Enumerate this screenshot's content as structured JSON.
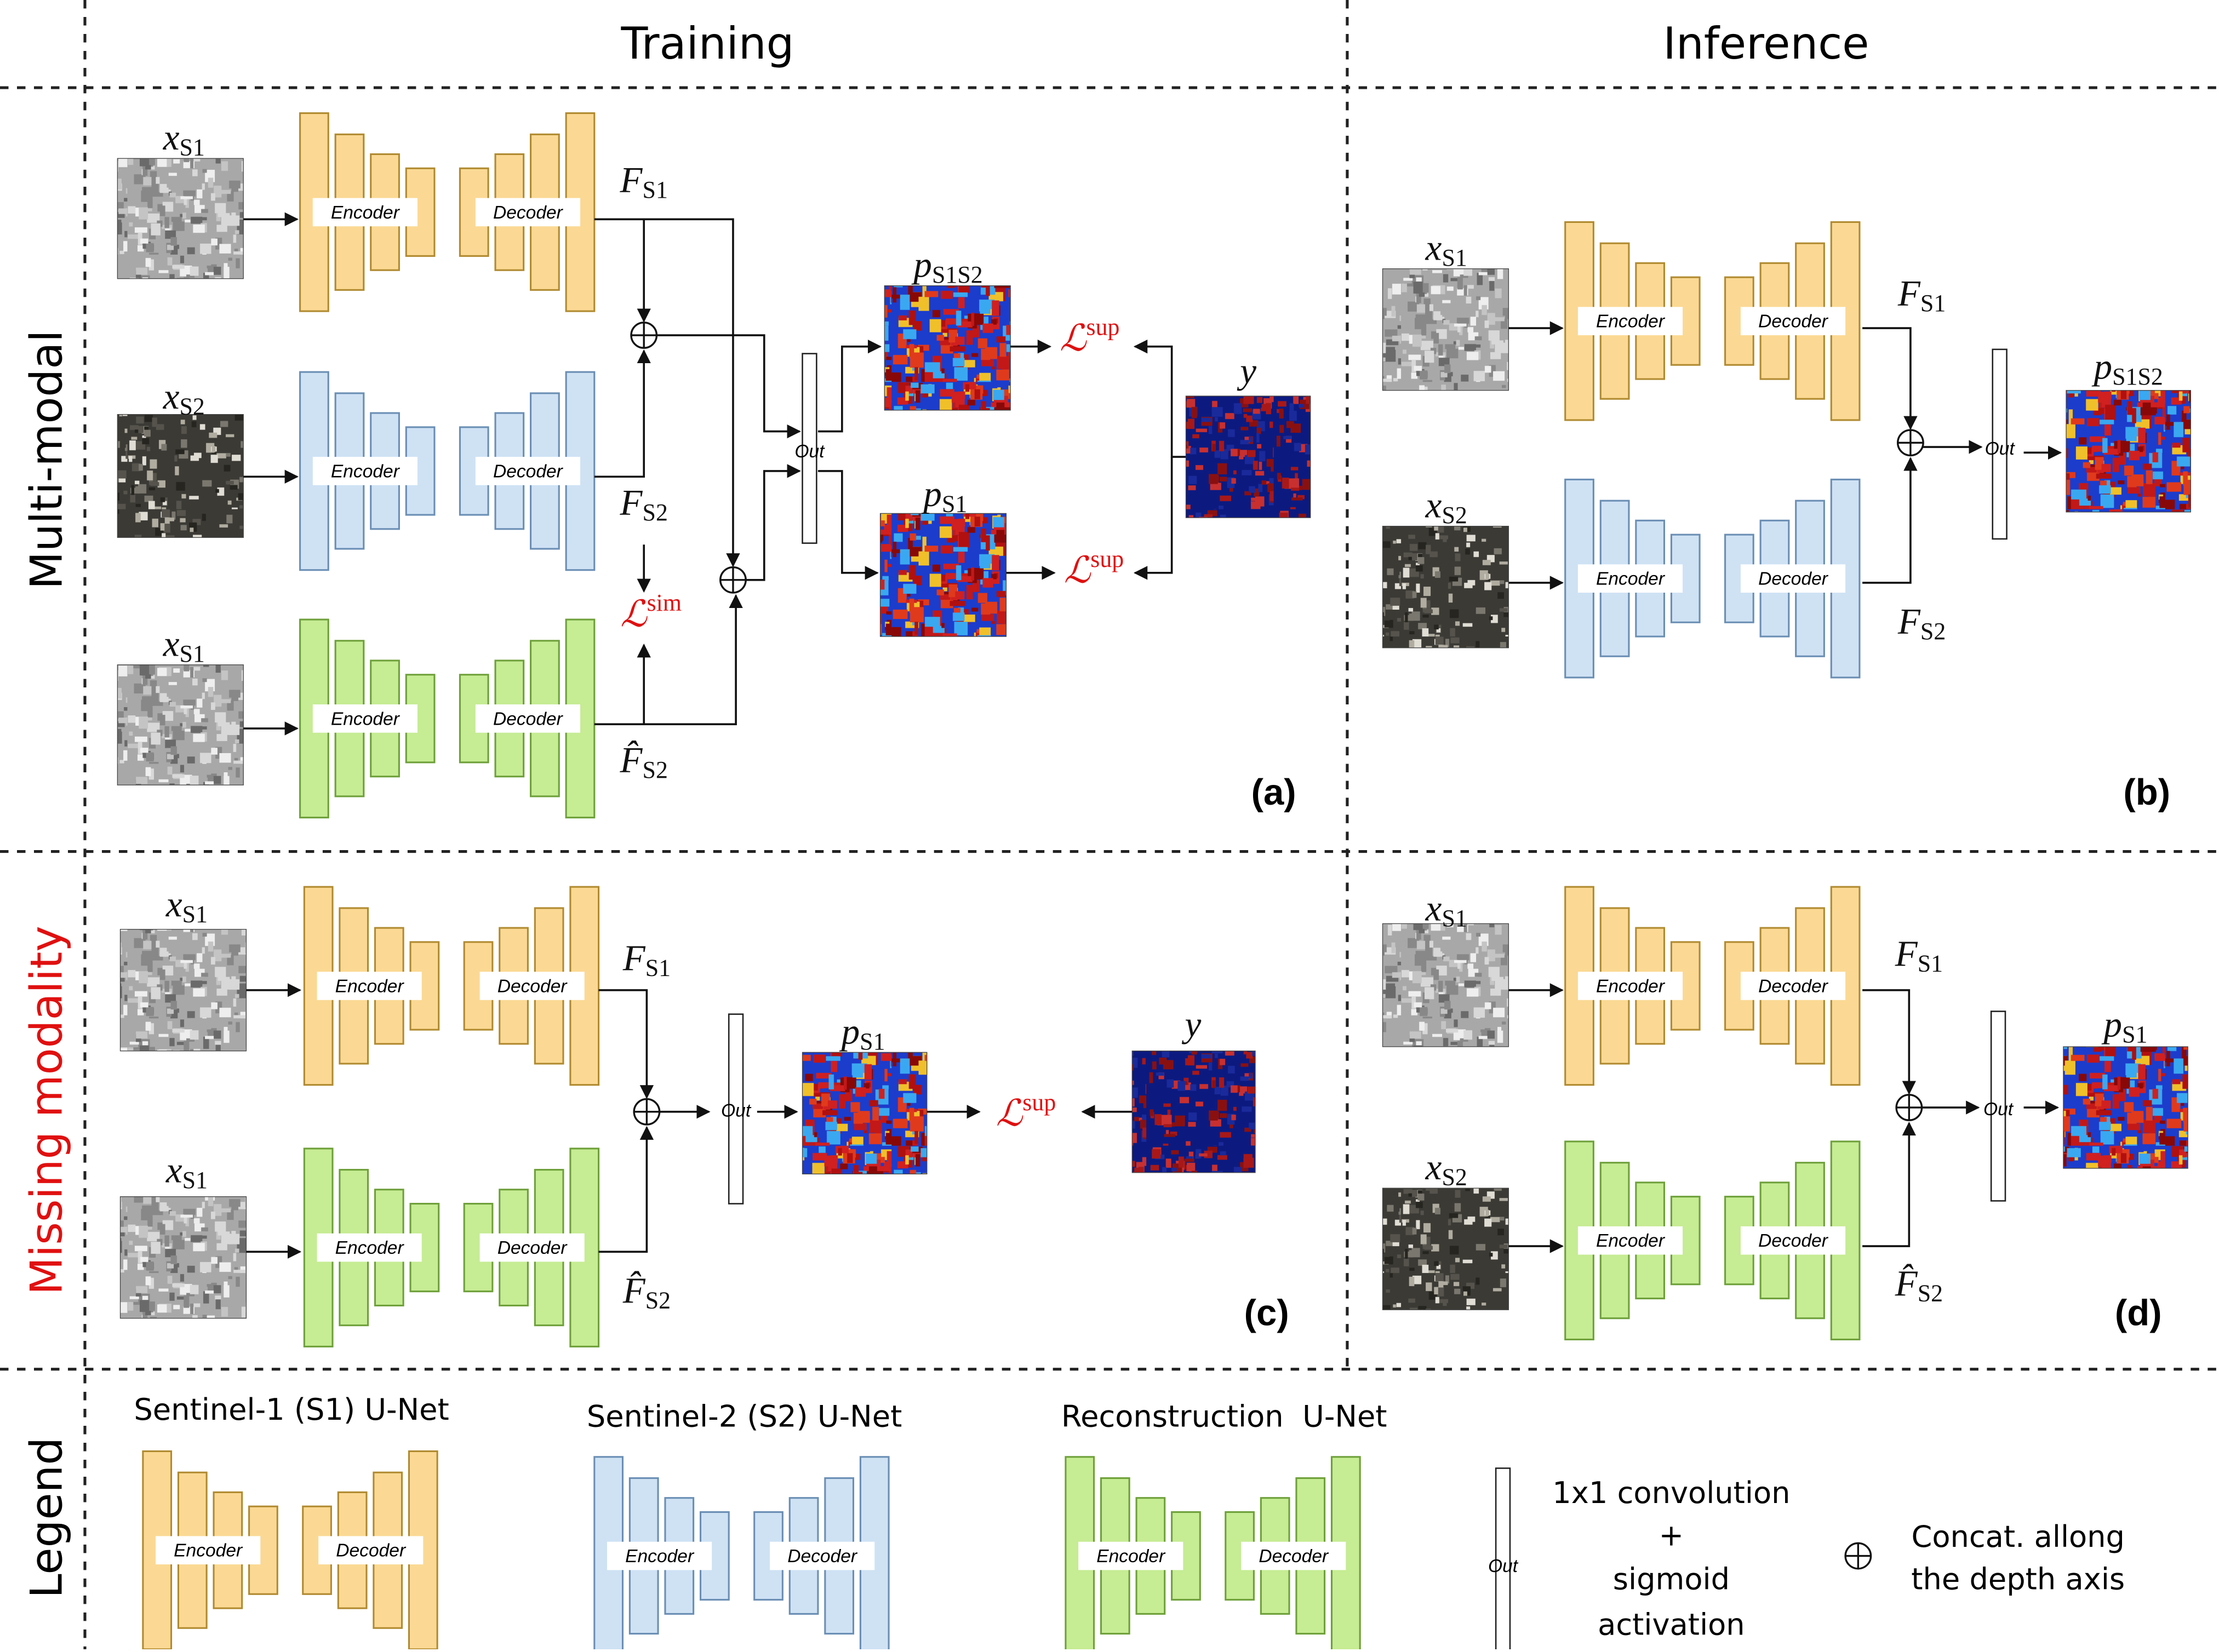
{
  "headers": {
    "columns": [
      "Training",
      "Inference"
    ],
    "rows": [
      "Multi-modal",
      "Missing modality",
      "Legend"
    ]
  },
  "blocks": {
    "encoder": "Encoder",
    "decoder": "Decoder",
    "out": "Out"
  },
  "symbols": {
    "x_s1": {
      "base": "x",
      "sub": "S1"
    },
    "x_s2": {
      "base": "x",
      "sub": "S2"
    },
    "f_s1": {
      "base": "F",
      "sub": "S1"
    },
    "f_s2": {
      "base": "F",
      "sub": "S2"
    },
    "f_hat_s2": {
      "base": "F̂",
      "sub": "S2"
    },
    "p_s1s2": {
      "base": "p",
      "sub": "S1S2"
    },
    "p_s1": {
      "base": "p",
      "sub": "S1"
    },
    "y": {
      "base": "y"
    },
    "l_sup": {
      "base": "ℒ",
      "sup": "sup"
    },
    "l_sim": {
      "base": "ℒ",
      "sup": "sim"
    }
  },
  "panels": [
    "(a)",
    "(b)",
    "(c)",
    "(d)"
  ],
  "legend": {
    "unets": [
      "Sentinel-1 (S1) U-Net",
      "Sentinel-2 (S2) U-Net",
      "Reconstruction  U-Net"
    ],
    "conv": [
      "1x1 convolution",
      "+",
      "sigmoid",
      "activation"
    ],
    "concat": [
      "Concat. allong",
      "the depth axis"
    ]
  }
}
